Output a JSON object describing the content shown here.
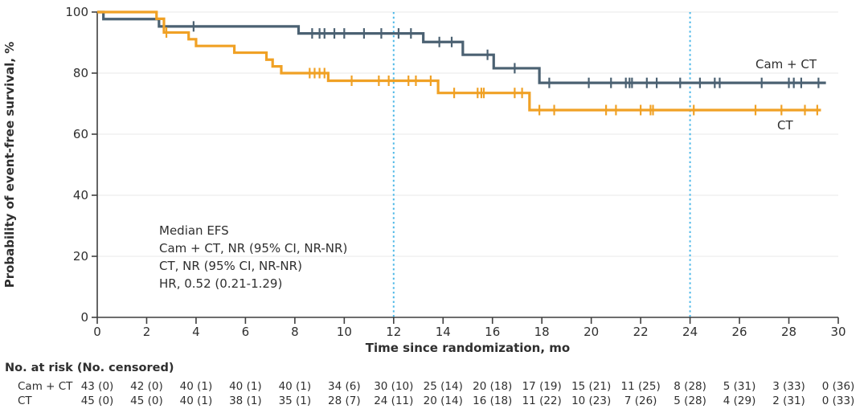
{
  "chart_data": {
    "type": "line",
    "subtype": "kaplan-meier-step-curves",
    "title": "",
    "xlabel": "Time since randomization, mo",
    "ylabel": "Probability of event-free survival, %",
    "xlim": [
      0,
      30
    ],
    "ylim": [
      0,
      100
    ],
    "xticks": [
      0,
      2,
      4,
      6,
      8,
      10,
      12,
      14,
      16,
      18,
      20,
      22,
      24,
      26,
      28,
      30
    ],
    "yticks": [
      0,
      20,
      40,
      60,
      80,
      100
    ],
    "grid": "horizontal",
    "grid_color": "#EAEAEA",
    "axis_color": "#3F3F3F",
    "text_color": "#2F2F2F",
    "reference_lines_x": [
      12,
      24
    ],
    "reference_line_color": "#4FB9E8",
    "legend_position": "inline-right",
    "series": [
      {
        "name": "Cam + CT",
        "color": "#4B6172",
        "steps": [
          [
            0,
            100
          ],
          [
            0.25,
            97.7
          ],
          [
            2.5,
            95.3
          ],
          [
            8.15,
            93.0
          ],
          [
            13.2,
            90.2
          ],
          [
            14.8,
            86.0
          ],
          [
            16.05,
            81.6
          ],
          [
            17.9,
            76.8
          ],
          [
            29.5,
            76.8
          ]
        ],
        "censor_times": [
          3.9,
          8.7,
          9.0,
          9.2,
          9.6,
          10.0,
          10.8,
          11.5,
          12.2,
          12.7,
          13.85,
          14.35,
          15.8,
          16.9,
          18.3,
          19.9,
          20.8,
          21.4,
          21.55,
          21.65,
          22.25,
          22.65,
          23.6,
          24.4,
          25.0,
          25.2,
          26.9,
          28.0,
          28.2,
          28.5,
          29.2
        ]
      },
      {
        "name": "CT",
        "color": "#F0A125",
        "steps": [
          [
            0,
            100
          ],
          [
            2.4,
            97.8
          ],
          [
            2.7,
            93.3
          ],
          [
            3.7,
            91.1
          ],
          [
            4.0,
            88.9
          ],
          [
            5.55,
            86.7
          ],
          [
            6.85,
            84.4
          ],
          [
            7.1,
            82.2
          ],
          [
            7.45,
            80.0
          ],
          [
            9.35,
            77.5
          ],
          [
            13.8,
            73.5
          ],
          [
            17.5,
            67.9
          ],
          [
            29.3,
            67.9
          ]
        ],
        "censor_times": [
          2.8,
          8.6,
          8.8,
          9.0,
          9.2,
          10.3,
          11.4,
          11.8,
          12.6,
          12.9,
          13.5,
          14.45,
          15.4,
          15.55,
          15.65,
          16.9,
          17.2,
          17.9,
          18.5,
          20.6,
          21.0,
          22.0,
          22.4,
          22.5,
          24.15,
          26.65,
          27.7,
          28.65,
          29.15
        ]
      }
    ],
    "annotation": {
      "lines": [
        "Median EFS",
        "Cam + CT, NR (95% CI, NR-NR)",
        "CT, NR (95% CI, NR-NR)",
        "HR, 0.52 (0.21-1.29)"
      ]
    }
  },
  "risk_table": {
    "header": "No. at risk (No. censored)",
    "rows": [
      {
        "label": "Cam + CT",
        "values": [
          "43 (0)",
          "42 (0)",
          "40 (1)",
          "40 (1)",
          "40 (1)",
          "34 (6)",
          "30 (10)",
          "25 (14)",
          "20 (18)",
          "17 (19)",
          "15 (21)",
          "11 (25)",
          "8 (28)",
          "5 (31)",
          "3 (33)",
          "0 (36)"
        ]
      },
      {
        "label": "CT",
        "values": [
          "45 (0)",
          "45 (0)",
          "40 (1)",
          "38 (1)",
          "35 (1)",
          "28 (7)",
          "24 (11)",
          "20 (14)",
          "16 (18)",
          "11 (22)",
          "10 (23)",
          "7 (26)",
          "5 (28)",
          "4 (29)",
          "2 (31)",
          "0 (33)"
        ]
      }
    ]
  }
}
